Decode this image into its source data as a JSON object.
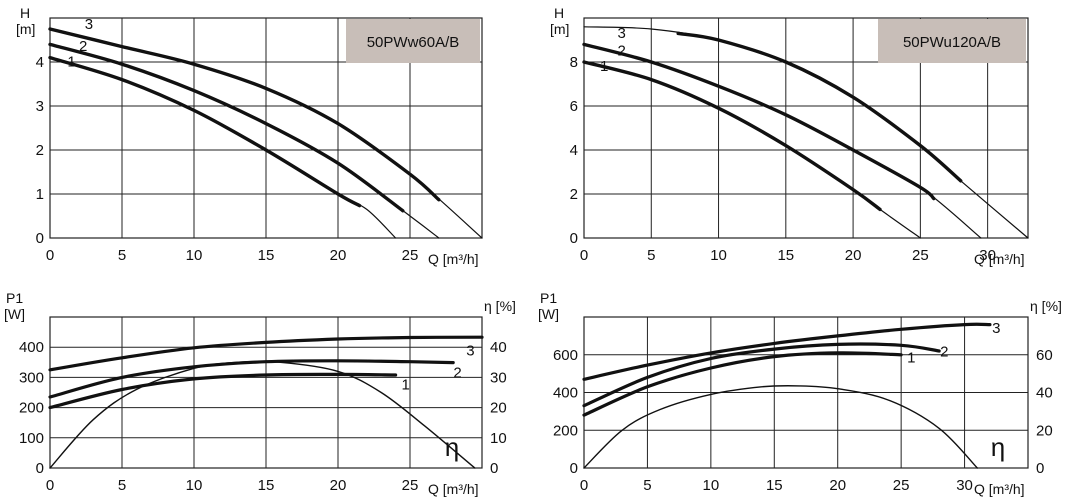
{
  "chart_data": [
    {
      "type": "line",
      "title": "50PWw60A/B",
      "y_axis_symbol": "H",
      "y_unit": "[m]",
      "xlabel": "Q [m³/h]",
      "xlim": [
        0,
        30
      ],
      "ylim": [
        0,
        5
      ],
      "x_ticks": [
        0,
        5,
        10,
        15,
        20,
        25
      ],
      "y_ticks": [
        0,
        1,
        2,
        3,
        4
      ],
      "grid": true,
      "series": [
        {
          "name": "1",
          "x": [
            0,
            5,
            10,
            15,
            20,
            22,
            24
          ],
          "y": [
            4.1,
            3.6,
            2.9,
            2.0,
            1.0,
            0.65,
            0.0
          ],
          "bold_to": 21.5
        },
        {
          "name": "2",
          "x": [
            0,
            5,
            10,
            15,
            20,
            25,
            27
          ],
          "y": [
            4.4,
            3.95,
            3.35,
            2.6,
            1.7,
            0.5,
            0.0
          ],
          "bold_to": 24.5
        },
        {
          "name": "3",
          "x": [
            0,
            5,
            10,
            15,
            20,
            25,
            30
          ],
          "y": [
            4.75,
            4.35,
            3.95,
            3.4,
            2.6,
            1.45,
            0.0
          ],
          "bold_to": 27
        }
      ]
    },
    {
      "type": "line",
      "title": "50PWu120A/B",
      "y_axis_symbol": "H",
      "y_unit": "[m]",
      "xlabel": "Q [m³/h]",
      "xlim": [
        0,
        33
      ],
      "ylim": [
        0,
        10
      ],
      "x_ticks": [
        0,
        5,
        10,
        15,
        20,
        25,
        30
      ],
      "y_ticks": [
        0,
        2,
        4,
        6,
        8
      ],
      "grid": true,
      "series": [
        {
          "name": "1",
          "x": [
            0,
            5,
            10,
            15,
            20,
            22,
            25
          ],
          "y": [
            8.0,
            7.2,
            5.9,
            4.2,
            2.2,
            1.3,
            0.0
          ],
          "bold_to": 22
        },
        {
          "name": "2",
          "x": [
            0,
            5,
            10,
            15,
            20,
            25,
            29.5
          ],
          "y": [
            8.8,
            8.0,
            6.9,
            5.6,
            4.0,
            2.3,
            0.0
          ],
          "bold_to": 26
        },
        {
          "name": "3",
          "x": [
            0,
            5,
            10,
            15,
            20,
            25,
            28,
            33
          ],
          "y": [
            9.6,
            9.5,
            9.0,
            8.0,
            6.4,
            4.2,
            2.6,
            0.0
          ],
          "bold_from": 7,
          "bold_to": 28
        }
      ]
    },
    {
      "type": "line",
      "y_axis_symbol": "P1",
      "y_unit": "[W]",
      "y2_label": "η [%]",
      "xlabel": "Q [m³/h]",
      "xlim": [
        0,
        30
      ],
      "ylim": [
        0,
        500
      ],
      "y2lim": [
        0,
        50
      ],
      "x_ticks": [
        0,
        5,
        10,
        15,
        20,
        25
      ],
      "y_ticks": [
        0,
        100,
        200,
        300,
        400
      ],
      "y2_ticks": [
        0,
        10,
        20,
        30,
        40
      ],
      "eta_symbol": "η",
      "grid": true,
      "series": [
        {
          "name": "1",
          "x": [
            0,
            5,
            10,
            15,
            20,
            24
          ],
          "y": [
            200,
            260,
            295,
            308,
            310,
            308
          ]
        },
        {
          "name": "2",
          "x": [
            0,
            5,
            10,
            15,
            20,
            25,
            28
          ],
          "y": [
            235,
            300,
            335,
            352,
            355,
            352,
            349
          ]
        },
        {
          "name": "3",
          "x": [
            0,
            5,
            10,
            15,
            20,
            25,
            30
          ],
          "y": [
            325,
            365,
            398,
            416,
            427,
            432,
            433
          ]
        },
        {
          "name": "η",
          "axis": "right",
          "x": [
            0,
            3,
            6,
            10,
            13,
            16,
            20,
            23,
            26,
            29.5
          ],
          "y": [
            0,
            16,
            26,
            33,
            35,
            35,
            32,
            25,
            14,
            0
          ]
        }
      ]
    },
    {
      "type": "line",
      "y_axis_symbol": "P1",
      "y_unit": "[W]",
      "y2_label": "η [%]",
      "xlabel": "Q [m³/h]",
      "xlim": [
        0,
        35
      ],
      "ylim": [
        0,
        800
      ],
      "y2lim": [
        0,
        80
      ],
      "x_ticks": [
        0,
        5,
        10,
        15,
        20,
        25,
        30
      ],
      "y_ticks": [
        0,
        200,
        400,
        600
      ],
      "y2_ticks": [
        0,
        20,
        40,
        60
      ],
      "eta_symbol": "η",
      "grid": true,
      "series": [
        {
          "name": "1",
          "x": [
            0,
            5,
            10,
            15,
            20,
            25
          ],
          "y": [
            280,
            430,
            530,
            590,
            610,
            600
          ]
        },
        {
          "name": "2",
          "x": [
            0,
            5,
            10,
            15,
            20,
            25,
            28
          ],
          "y": [
            330,
            480,
            580,
            630,
            655,
            650,
            620
          ]
        },
        {
          "name": "3",
          "x": [
            0,
            5,
            10,
            15,
            20,
            25,
            30,
            32
          ],
          "y": [
            470,
            545,
            610,
            660,
            700,
            735,
            760,
            760
          ]
        },
        {
          "name": "η",
          "axis": "right",
          "x": [
            0,
            3,
            6,
            10,
            14,
            17,
            20,
            24,
            28,
            31
          ],
          "y": [
            0,
            20,
            31,
            39,
            43,
            43.5,
            42,
            36,
            21,
            0
          ]
        }
      ]
    }
  ]
}
